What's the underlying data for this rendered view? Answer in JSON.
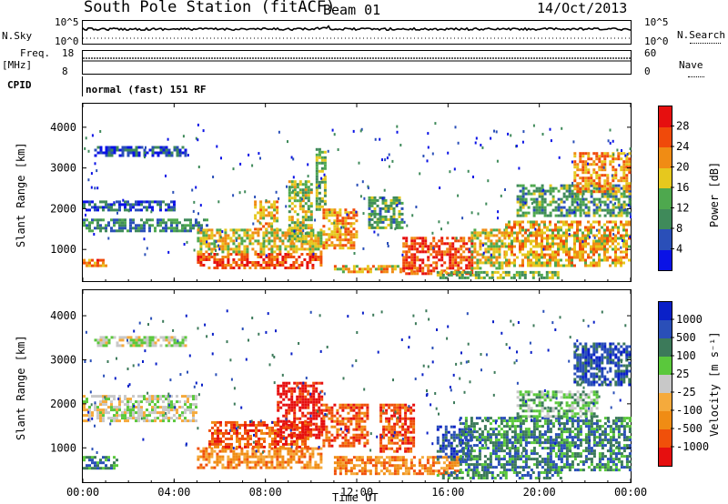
{
  "header": {
    "station": "South Pole Station (fitACF)",
    "beam": "Beam 01",
    "date": "14/Oct/2013"
  },
  "top_panels": {
    "nsky_label": "N.Sky",
    "nsky_ticks": [
      "10^5",
      "10^0"
    ],
    "nsearch_label": "N.Search",
    "freq_label": "Freq.",
    "freq_unit": "[MHz]",
    "freq_ticks": [
      "18",
      "8"
    ],
    "nave_label": "Nave",
    "nave_ticks": [
      "60",
      "0"
    ],
    "cpid_label": "CPID",
    "cpid_text": "normal (fast) 151 RF"
  },
  "colors": {
    "power": [
      "#0a12e6",
      "#2a4fb8",
      "#3f8a5a",
      "#4ea84e",
      "#e6c81e",
      "#f08c14",
      "#f04a0a",
      "#e60f0f"
    ],
    "velocity": [
      "#e60f0f",
      "#f0500a",
      "#f08c14",
      "#f5aa3c",
      "#c8c8c8",
      "#5ac83c",
      "#3c7a5a",
      "#2a4fb8",
      "#0a20c8"
    ]
  },
  "chart_data": [
    {
      "type": "heatmap",
      "name": "power",
      "ylabel": "Slant Range [km]",
      "xlabel": "Time UT",
      "xlim": [
        0,
        24
      ],
      "ylim": [
        200,
        4600
      ],
      "yticks": [
        "1000",
        "2000",
        "3000",
        "4000"
      ],
      "colorbar_label": "Power [dB]",
      "colorbar_ticks": [
        "4",
        "8",
        "12",
        "16",
        "20",
        "24",
        "28"
      ],
      "clim": [
        0,
        32
      ],
      "blobs": [
        {
          "t0": 0.0,
          "t1": 5.5,
          "r0": 1450,
          "r1": 1750,
          "v": 10
        },
        {
          "t0": 0.0,
          "t1": 4.0,
          "r0": 1950,
          "r1": 2200,
          "v": 6
        },
        {
          "t0": 0.0,
          "t1": 1.0,
          "r0": 600,
          "r1": 750,
          "v": 24
        },
        {
          "t0": 0.5,
          "t1": 4.5,
          "r0": 3300,
          "r1": 3550,
          "v": 5
        },
        {
          "t0": 5.0,
          "t1": 10.5,
          "r0": 500,
          "r1": 900,
          "v": 26
        },
        {
          "t0": 5.0,
          "t1": 10.5,
          "r0": 900,
          "r1": 1500,
          "v": 18
        },
        {
          "t0": 7.5,
          "t1": 8.5,
          "r0": 1500,
          "r1": 2200,
          "v": 20
        },
        {
          "t0": 9.0,
          "t1": 10.0,
          "r0": 1200,
          "r1": 2700,
          "v": 16
        },
        {
          "t0": 10.5,
          "t1": 12.0,
          "r0": 1000,
          "r1": 2000,
          "v": 22
        },
        {
          "t0": 11.0,
          "t1": 14.5,
          "r0": 400,
          "r1": 600,
          "v": 20
        },
        {
          "t0": 12.5,
          "t1": 14.0,
          "r0": 1500,
          "r1": 2300,
          "v": 12
        },
        {
          "t0": 14.0,
          "t1": 17.0,
          "r0": 400,
          "r1": 1300,
          "v": 26
        },
        {
          "t0": 17.0,
          "t1": 18.5,
          "r0": 500,
          "r1": 1500,
          "v": 18
        },
        {
          "t0": 18.5,
          "t1": 24.0,
          "r0": 600,
          "r1": 1700,
          "v": 20
        },
        {
          "t0": 19.0,
          "t1": 24.0,
          "r0": 1800,
          "r1": 2600,
          "v": 12
        },
        {
          "t0": 21.5,
          "t1": 24.0,
          "r0": 2400,
          "r1": 3400,
          "v": 22
        },
        {
          "t0": 10.2,
          "t1": 10.6,
          "r0": 2000,
          "r1": 3500,
          "v": 14
        },
        {
          "t0": 15.5,
          "t1": 21.0,
          "r0": 300,
          "r1": 450,
          "v": 14
        }
      ]
    },
    {
      "type": "heatmap",
      "name": "velocity",
      "ylabel": "Slant Range [km]",
      "xlabel": "Time UT",
      "xlim": [
        0,
        24
      ],
      "ylim": [
        200,
        4600
      ],
      "yticks": [
        "1000",
        "2000",
        "3000",
        "4000"
      ],
      "xticks": [
        "00:00",
        "04:00",
        "08:00",
        "12:00",
        "16:00",
        "20:00",
        "00:00"
      ],
      "colorbar_label": "Velocity [m s⁻¹]",
      "colorbar_ticks": [
        "1000",
        "500",
        "100",
        "25",
        "-25",
        "-100",
        "-500",
        "-1000"
      ],
      "blobs": [
        {
          "t0": 0.0,
          "t1": 5.0,
          "r0": 1600,
          "r1": 2200,
          "v": 4
        },
        {
          "t0": 0.0,
          "t1": 1.5,
          "r0": 500,
          "r1": 800,
          "v": 6
        },
        {
          "t0": 0.5,
          "t1": 4.5,
          "r0": 3300,
          "r1": 3550,
          "v": 4
        },
        {
          "t0": 5.0,
          "t1": 10.5,
          "r0": 500,
          "r1": 1000,
          "v": 2
        },
        {
          "t0": 5.5,
          "t1": 10.0,
          "r0": 1000,
          "r1": 1600,
          "v": 1
        },
        {
          "t0": 8.5,
          "t1": 10.5,
          "r0": 1200,
          "r1": 2500,
          "v": 0
        },
        {
          "t0": 10.5,
          "t1": 12.5,
          "r0": 1000,
          "r1": 2000,
          "v": 1
        },
        {
          "t0": 11.0,
          "t1": 16.5,
          "r0": 400,
          "r1": 800,
          "v": 2
        },
        {
          "t0": 13.0,
          "t1": 14.5,
          "r0": 900,
          "r1": 2000,
          "v": 1
        },
        {
          "t0": 15.5,
          "t1": 17.0,
          "r0": 700,
          "r1": 1500,
          "v": 7
        },
        {
          "t0": 16.5,
          "t1": 24.0,
          "r0": 500,
          "r1": 1700,
          "v": 6
        },
        {
          "t0": 19.0,
          "t1": 22.5,
          "r0": 1700,
          "r1": 2300,
          "v": 5
        },
        {
          "t0": 21.5,
          "t1": 24.0,
          "r0": 2400,
          "r1": 3400,
          "v": 7
        },
        {
          "t0": 15.5,
          "t1": 21.0,
          "r0": 300,
          "r1": 450,
          "v": 6
        }
      ]
    }
  ]
}
